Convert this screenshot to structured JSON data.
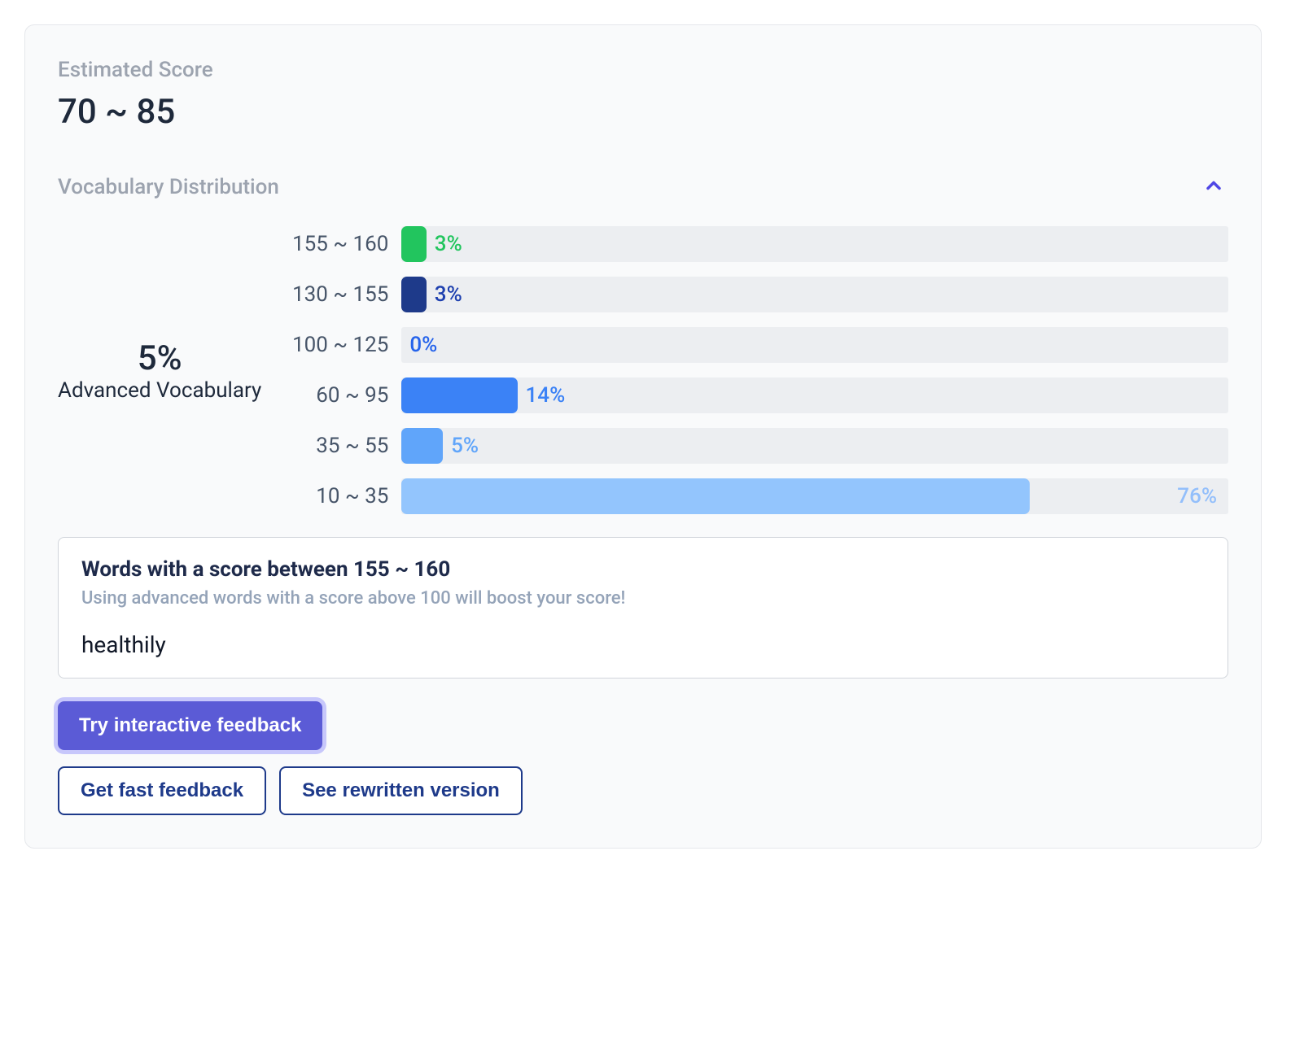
{
  "estimated_score": {
    "label": "Estimated Score",
    "value": "70 ~ 85"
  },
  "vocab_distribution": {
    "label": "Vocabulary Distribution",
    "summary": {
      "percent": "5%",
      "sublabel": "Advanced Vocabulary"
    },
    "track_color": "#eceef1",
    "bars": [
      {
        "range": "155 ~ 160",
        "percent": 3,
        "percent_label": "3%",
        "bar_color": "#22c55e",
        "text_color": "#22c55e"
      },
      {
        "range": "130 ~ 155",
        "percent": 3,
        "percent_label": "3%",
        "bar_color": "#1e3a8a",
        "text_color": "#1e40af"
      },
      {
        "range": "100 ~ 125",
        "percent": 0,
        "percent_label": "0%",
        "bar_color": "#2659c5",
        "text_color": "#2563eb"
      },
      {
        "range": "60 ~ 95",
        "percent": 14,
        "percent_label": "14%",
        "bar_color": "#3b82f6",
        "text_color": "#3b82f6"
      },
      {
        "range": "35 ~ 55",
        "percent": 5,
        "percent_label": "5%",
        "bar_color": "#60a5fa",
        "text_color": "#60a5fa"
      },
      {
        "range": "10 ~ 35",
        "percent": 76,
        "percent_label": "76%",
        "bar_color": "#93c5fd",
        "text_color": "#93bffb"
      }
    ]
  },
  "detail": {
    "title": "Words with a score between 155 ~ 160",
    "hint": "Using advanced words with a score above 100 will boost your score!",
    "word": "healthily"
  },
  "buttons": {
    "primary": "Try interactive feedback",
    "secondary1": "Get fast feedback",
    "secondary2": "See rewritten version"
  },
  "colors": {
    "primary_btn_bg": "#5b5bd6",
    "primary_btn_ring": "#c7c7fb",
    "secondary_btn_border": "#1e3a8a",
    "chevron": "#4f46e5",
    "card_border": "#e5e7eb",
    "card_bg": "#f9fafb"
  }
}
